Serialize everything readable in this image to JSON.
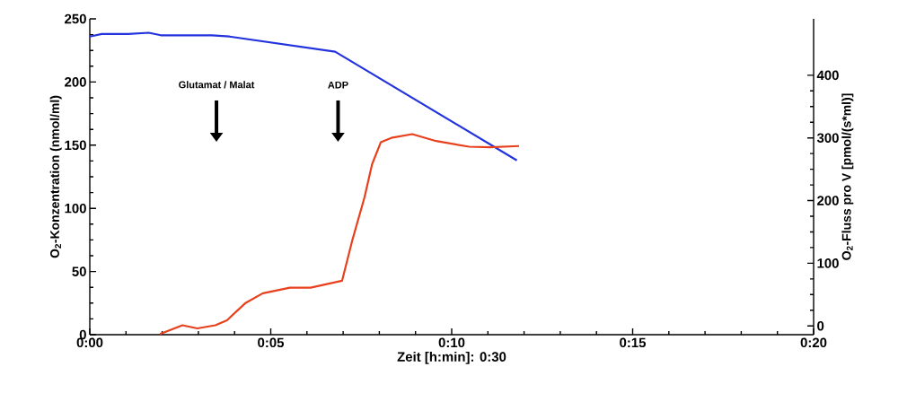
{
  "chart_data": {
    "type": "line",
    "xlabel": "Zeit [h:min]: 0:30",
    "ylabel": "O$_{2}$-Konzentration (nmol/ml)",
    "y2label": "O$_{2}$-Fluss pro V [pmol/(s*ml)]",
    "xlim": [
      0,
      20
    ],
    "xticks": [
      {
        "value": 0,
        "label": "0:00"
      },
      {
        "value": 5,
        "label": "0:05"
      },
      {
        "value": 10,
        "label": "0:10"
      },
      {
        "value": 15,
        "label": "0:15"
      },
      {
        "value": 20,
        "label": "0:20"
      }
    ],
    "ylim": [
      0,
      250
    ],
    "yticks": [
      0,
      50,
      100,
      150,
      200,
      250
    ],
    "y2lim": [
      -14,
      490
    ],
    "y2ticks": [
      0,
      100,
      200,
      300,
      400
    ],
    "series": [
      {
        "color": "#2233dd",
        "x": [
          0,
          0.33,
          1.06,
          1.63,
          1.96,
          3.37,
          3.86,
          6.78,
          11.8
        ],
        "values": [
          236,
          238,
          238,
          239,
          237,
          237,
          236,
          224,
          138
        ]
      },
      {
        "color": "#e8401c",
        "axis": "y2",
        "x": [
          1.94,
          2.56,
          2.97,
          3.47,
          3.79,
          4.29,
          4.78,
          5.53,
          6.1,
          6.97,
          7.26,
          7.59,
          7.8,
          8.04,
          8.33,
          8.91,
          9.57,
          10.48,
          11.06,
          11.86
        ],
        "values": [
          -13,
          1,
          -4,
          1,
          9,
          36,
          52,
          61,
          61,
          72,
          138,
          205,
          258,
          293,
          300,
          306,
          295,
          286,
          285,
          287
        ]
      }
    ],
    "annotations": [
      "Glutamat / Malat",
      "ADP"
    ]
  }
}
